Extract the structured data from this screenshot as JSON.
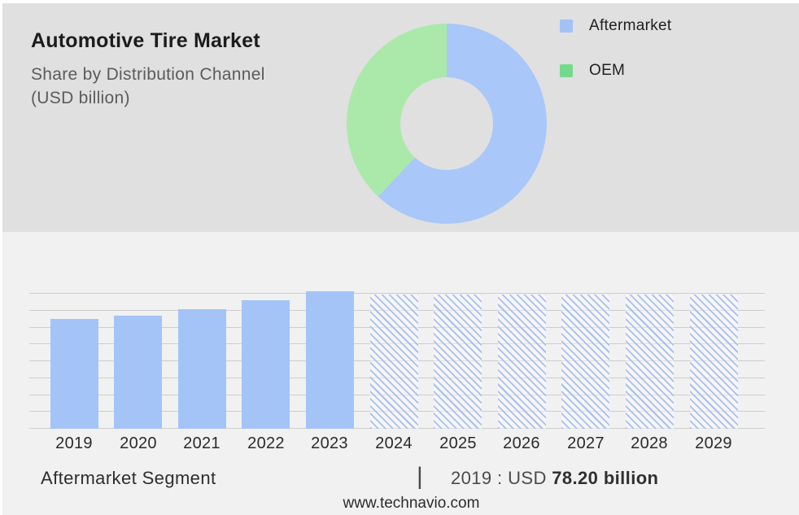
{
  "page": {
    "top_panel_bg": "#e0e0e1",
    "bottom_panel_bg": "#f1f1f2",
    "outer_bg": "#ffffff"
  },
  "header": {
    "title": "Automotive Tire Market",
    "subtitle_line1": "Share by Distribution Channel",
    "subtitle_line2": "(USD billion)"
  },
  "legend": {
    "items": [
      {
        "label": "Aftermarket",
        "color": "#a2c2f5"
      },
      {
        "label": "OEM",
        "color": "#74da8b"
      }
    ]
  },
  "chart_data": [
    {
      "type": "pie",
      "subtype": "donut",
      "title": "Share by Distribution Channel (USD billion)",
      "labels": [
        "Aftermarket",
        "OEM"
      ],
      "values_pct": [
        62,
        38
      ],
      "colors": [
        "#a9c7f9",
        "#abe9ab"
      ],
      "start_angle_deg": 0,
      "direction": "clockwise",
      "legend_position": "top-right",
      "hole_ratio": 0.46
    },
    {
      "type": "bar",
      "title": "Aftermarket Segment (USD billion)",
      "categories": [
        "2019",
        "2020",
        "2021",
        "2022",
        "2023",
        "2024",
        "2025",
        "2026",
        "2027",
        "2028",
        "2029"
      ],
      "bar_styles": [
        "solid",
        "solid",
        "solid",
        "solid",
        "solid",
        "hatched",
        "hatched",
        "hatched",
        "hatched",
        "hatched",
        "hatched"
      ],
      "relative_heights": [
        0.811,
        0.834,
        0.882,
        0.944,
        1.014,
        0.991,
        0.991,
        0.991,
        0.991,
        0.991,
        0.991
      ],
      "values_usd_billion_est": [
        78.2,
        80.4,
        85.0,
        91.0,
        97.7,
        null,
        null,
        null,
        null,
        null,
        null
      ],
      "labeled_point": {
        "category": "2019",
        "value": "USD 78.20 billion"
      },
      "solid_bar_color": "#a4c4f7",
      "hatch_line_color": "#a9bfee",
      "hatch_gap_color": "rgba(252,253,255,0.45)",
      "gridline_color": "#cdcdce",
      "gridline_count": 9,
      "grid": true,
      "xlabel": "",
      "ylabel": "",
      "y_axis_tick_labels_shown": false
    }
  ],
  "footer": {
    "segment_label": "Aftermarket Segment",
    "separator": "|",
    "value_prefix": "2019 : USD ",
    "value_bold": "78.20 billion",
    "website": "www.technavio.com"
  }
}
